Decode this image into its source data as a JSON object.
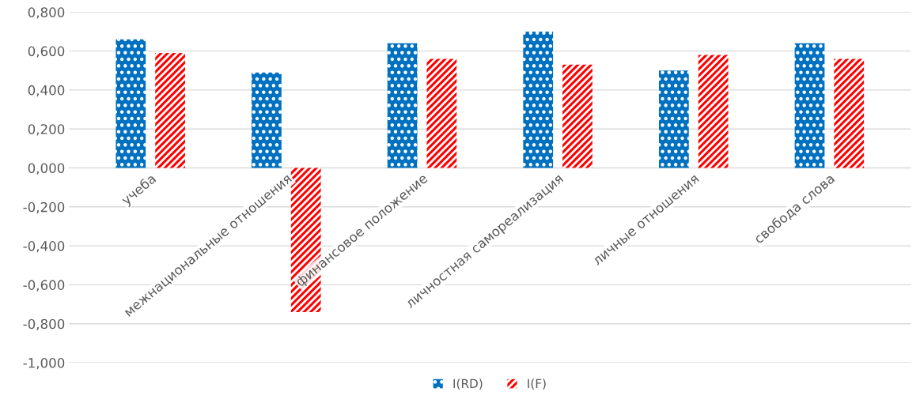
{
  "chart_data": {
    "type": "bar",
    "categories": [
      "учеба",
      "межнациональные отношения",
      "финансовое положение",
      "личностная самореализация",
      "личные отношения",
      "свобода слова"
    ],
    "series": [
      {
        "name": "I(RD)",
        "color": "#0070c0",
        "values": [
          0.66,
          0.49,
          0.64,
          0.7,
          0.5,
          0.64
        ]
      },
      {
        "name": "I(F)",
        "color": "#ff0000",
        "values": [
          0.59,
          -0.74,
          0.56,
          0.53,
          0.58,
          0.56
        ]
      }
    ],
    "ylim": [
      -1.0,
      0.8
    ],
    "yticks": [
      {
        "value": -1.0,
        "label": "-1,000"
      },
      {
        "value": -0.8,
        "label": "-0,800"
      },
      {
        "value": -0.6,
        "label": "-0,600"
      },
      {
        "value": -0.4,
        "label": "-0,400"
      },
      {
        "value": -0.2,
        "label": "-0,200"
      },
      {
        "value": 0.0,
        "label": "0,000"
      },
      {
        "value": 0.2,
        "label": "0,200"
      },
      {
        "value": 0.4,
        "label": "0,400"
      },
      {
        "value": 0.6,
        "label": "0,600"
      },
      {
        "value": 0.8,
        "label": "0,800"
      }
    ],
    "grid": "y",
    "legend": "bottom"
  }
}
